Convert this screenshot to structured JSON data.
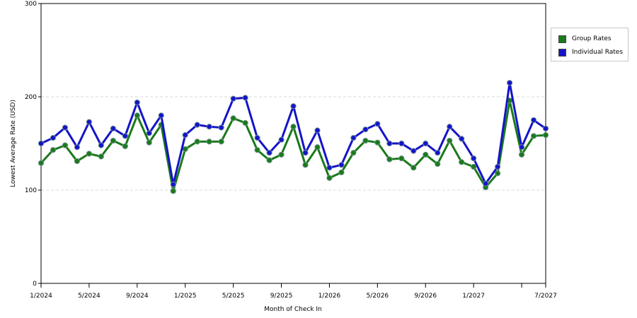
{
  "chart_data": {
    "type": "line",
    "xlabel": "Month of Check In",
    "ylabel": "Lowest Average Rate (USD)",
    "ylim": [
      0,
      300
    ],
    "yticks": [
      0,
      100,
      200,
      300
    ],
    "grid": true,
    "legend_position": "right",
    "x_tick_labels": [
      "1/2024",
      "5/2024",
      "9/2024",
      "1/2025",
      "5/2025",
      "9/2025",
      "1/2026",
      "5/2026",
      "9/2026",
      "1/2027",
      "",
      "7/2027"
    ],
    "x": [
      "1/2024",
      "2/2024",
      "3/2024",
      "4/2024",
      "5/2024",
      "6/2024",
      "7/2024",
      "8/2024",
      "9/2024",
      "10/2024",
      "11/2024",
      "12/2024",
      "1/2025",
      "2/2025",
      "3/2025",
      "4/2025",
      "5/2025",
      "6/2025",
      "7/2025",
      "8/2025",
      "9/2025",
      "10/2025",
      "11/2025",
      "12/2025",
      "1/2026",
      "2/2026",
      "3/2026",
      "4/2026",
      "5/2026",
      "6/2026",
      "7/2026",
      "8/2026",
      "9/2026",
      "10/2026",
      "11/2026",
      "12/2026",
      "1/2027",
      "2/2027",
      "3/2027",
      "4/2027",
      "5/2027",
      "6/2027",
      "7/2027"
    ],
    "series": [
      {
        "name": "Group Rates",
        "color": "#1a7a1a",
        "values": [
          129,
          143,
          148,
          131,
          139,
          136,
          153,
          147,
          180,
          151,
          170,
          99,
          144,
          152,
          152,
          152,
          177,
          172,
          143,
          132,
          138,
          168,
          127,
          146,
          113,
          119,
          140,
          153,
          151,
          133,
          134,
          124,
          138,
          128,
          153,
          130,
          125,
          103,
          118,
          196,
          138,
          158,
          159
        ]
      },
      {
        "name": "Individual Rates",
        "color": "#1414c8",
        "values": [
          150,
          156,
          167,
          146,
          173,
          148,
          166,
          158,
          194,
          161,
          180,
          106,
          159,
          170,
          168,
          167,
          198,
          199,
          156,
          140,
          154,
          190,
          140,
          164,
          124,
          127,
          156,
          165,
          171,
          150,
          150,
          142,
          150,
          140,
          168,
          155,
          134,
          107,
          125,
          215,
          146,
          175,
          166
        ]
      }
    ]
  }
}
